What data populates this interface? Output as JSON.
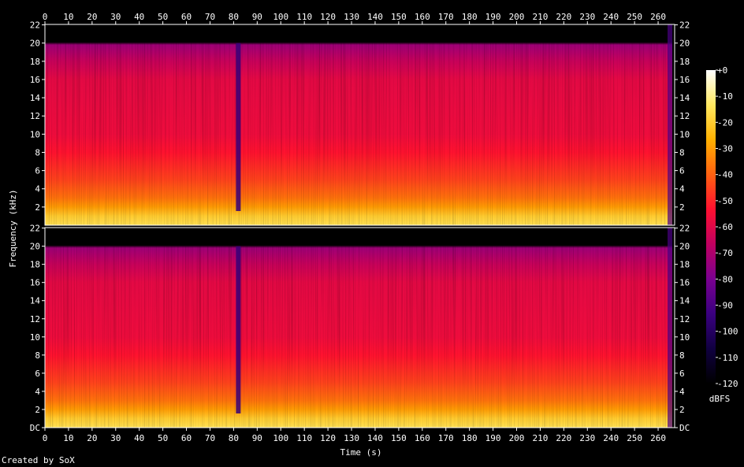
{
  "chart_data": {
    "type": "heatmap",
    "subtype": "spectrogram",
    "xlabel": "Time (s)",
    "ylabel": "Frequency (kHz)",
    "xlim": [
      0,
      267
    ],
    "ylim": [
      0,
      22.05
    ],
    "x_ticks": [
      0,
      10,
      20,
      30,
      40,
      50,
      60,
      70,
      80,
      90,
      100,
      110,
      120,
      130,
      140,
      150,
      160,
      170,
      180,
      190,
      200,
      210,
      220,
      230,
      240,
      250,
      260
    ],
    "y_ticks": [
      "DC",
      "2",
      "4",
      "6",
      "8",
      "10",
      "12",
      "14",
      "16",
      "18",
      "20",
      "22"
    ],
    "channels": [
      "channel-1",
      "channel-2"
    ],
    "colorbar": {
      "label": "dBFS",
      "ticks": [
        "+0",
        "-10",
        "-20",
        "-30",
        "-40",
        "-50",
        "-60",
        "-70",
        "-80",
        "-90",
        "-100",
        "-110",
        "-120"
      ],
      "range": [
        -120,
        0
      ],
      "colors": [
        "#000000",
        "#100040",
        "#3a0080",
        "#7a0090",
        "#c00060",
        "#ff1030",
        "#ff6010",
        "#ffb000",
        "#ffe860",
        "#ffffff"
      ]
    },
    "approx_levels_dbfs": {
      "0-1kHz": -15,
      "1-3kHz": -30,
      "3-8kHz": -45,
      "8-16kHz": -57,
      "16-20kHz": -65,
      "above_20kHz": -120
    },
    "notable": {
      "lowpass_cutoff_khz": 20,
      "signal_end_s": 266,
      "dropout_s": [
        81,
        83
      ]
    }
  },
  "footer": {
    "credit": "Created by SoX"
  }
}
